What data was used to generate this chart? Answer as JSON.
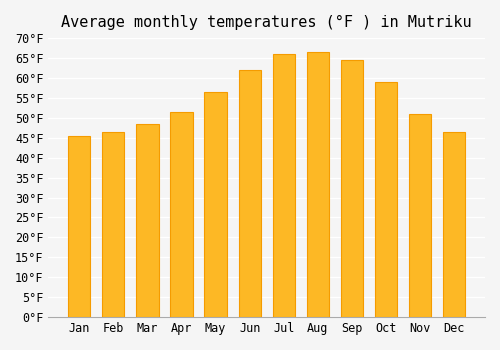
{
  "title": "Average monthly temperatures (°F ) in Mutriku",
  "months": [
    "Jan",
    "Feb",
    "Mar",
    "Apr",
    "May",
    "Jun",
    "Jul",
    "Aug",
    "Sep",
    "Oct",
    "Nov",
    "Dec"
  ],
  "values": [
    45.5,
    46.5,
    48.5,
    51.5,
    56.5,
    62.0,
    66.0,
    66.5,
    64.5,
    59.0,
    51.0,
    46.5
  ],
  "bar_color": "#FDB825",
  "bar_edge_color": "#F59B00",
  "background_color": "#F5F5F5",
  "grid_color": "#FFFFFF",
  "ylim": [
    0,
    70
  ],
  "ytick_step": 5,
  "title_fontsize": 11,
  "tick_fontsize": 8.5,
  "font_family": "monospace"
}
